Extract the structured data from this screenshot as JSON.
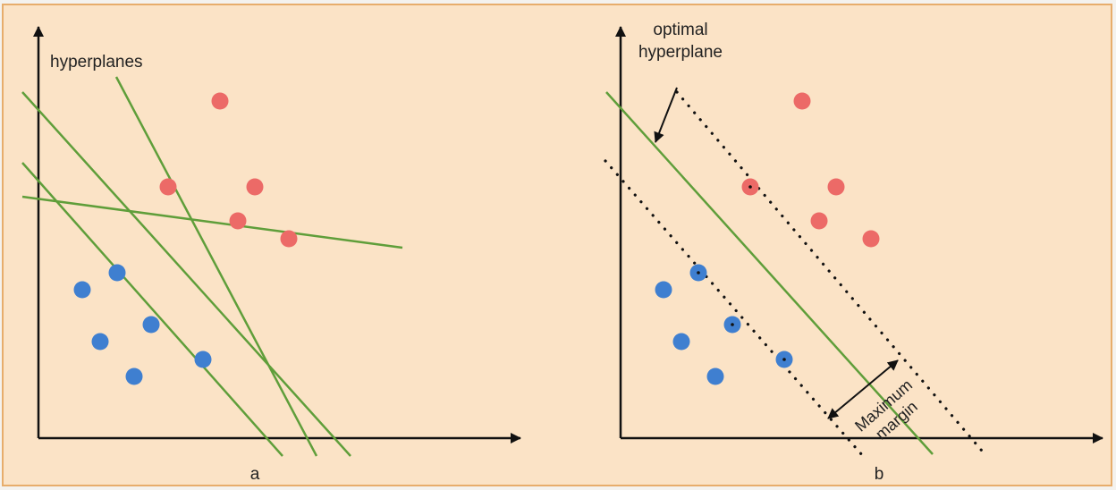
{
  "colors": {
    "background": "#fbe3c6",
    "frame": "#e7ad6b",
    "axis": "#111111",
    "hyperplane": "#5f9e3a",
    "red_class": "#ec6a67",
    "blue_class": "#3f7fd0",
    "margin_dots": "#111111"
  },
  "panel_a": {
    "caption": "a",
    "annotation": "hyperplanes"
  },
  "panel_b": {
    "caption": "b",
    "annotation_line1": "optimal",
    "annotation_line2": "hyperplane",
    "margin_label_line1": "Maximum",
    "margin_label_line2": "margin"
  }
}
